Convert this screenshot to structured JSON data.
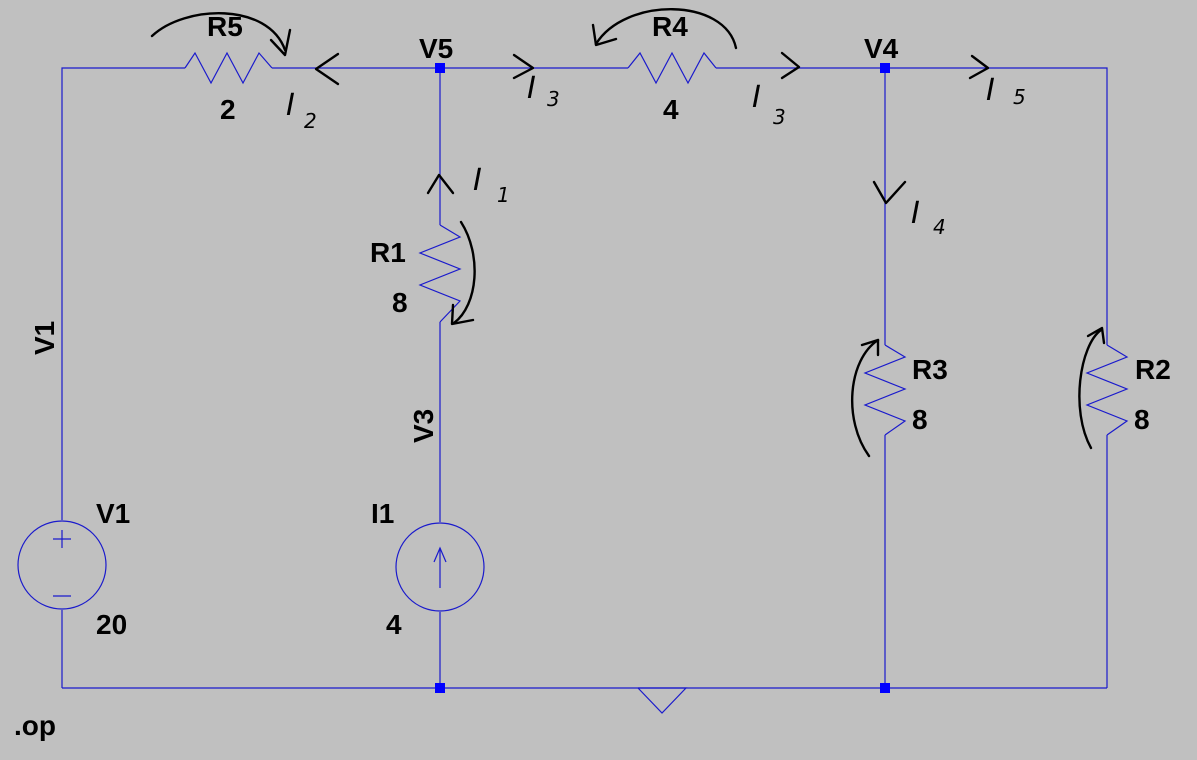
{
  "colors": {
    "background": "#c0c0c0",
    "wire": "#1a1acc",
    "node": "#0000ff",
    "text": "#000000",
    "annotation": "#000000"
  },
  "components": {
    "R5": {
      "name": "R5",
      "value": "2"
    },
    "R4": {
      "name": "R4",
      "value": "4"
    },
    "R1": {
      "name": "R1",
      "value": "8"
    },
    "R3": {
      "name": "R3",
      "value": "8"
    },
    "R2": {
      "name": "R2",
      "value": "8"
    },
    "V1": {
      "name": "V1",
      "value": "20",
      "net_label": "V1"
    },
    "I1": {
      "name": "I1",
      "value": "4",
      "net_label": "V3"
    }
  },
  "nodes": {
    "V5": "V5",
    "V4": "V4"
  },
  "directive": ".op",
  "annotations": {
    "I1": {
      "base": "I",
      "sub": "1"
    },
    "I2": {
      "base": "I",
      "sub": "2"
    },
    "I3a": {
      "base": "I",
      "sub": "3"
    },
    "I3b": {
      "base": "I",
      "sub": "3"
    },
    "I4": {
      "base": "I",
      "sub": "4"
    },
    "I5": {
      "base": "I",
      "sub": "5"
    }
  }
}
